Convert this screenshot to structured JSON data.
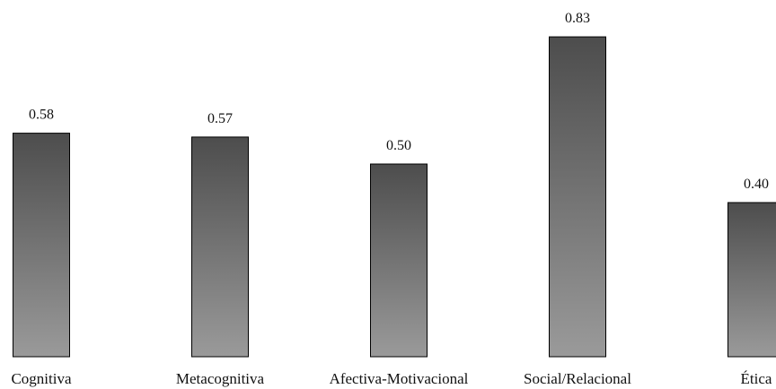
{
  "chart_data": {
    "type": "bar",
    "title": "",
    "xlabel": "",
    "ylabel": "",
    "categories": [
      "Cognitiva",
      "Metacognitiva",
      "Afectiva-Motivacional",
      "Social/Relacional",
      "Ética"
    ],
    "values": [
      0.58,
      0.57,
      0.5,
      0.83,
      0.4
    ],
    "value_labels": [
      "0.58",
      "0.57",
      "0.50",
      "0.83",
      "0.40"
    ],
    "ylim": [
      0,
      0.9
    ],
    "grid": false,
    "legend": "none",
    "bar_gradient": {
      "top": "#4d4d4d",
      "bottom": "#9a9a9a"
    },
    "bar_outline": "#000000"
  }
}
